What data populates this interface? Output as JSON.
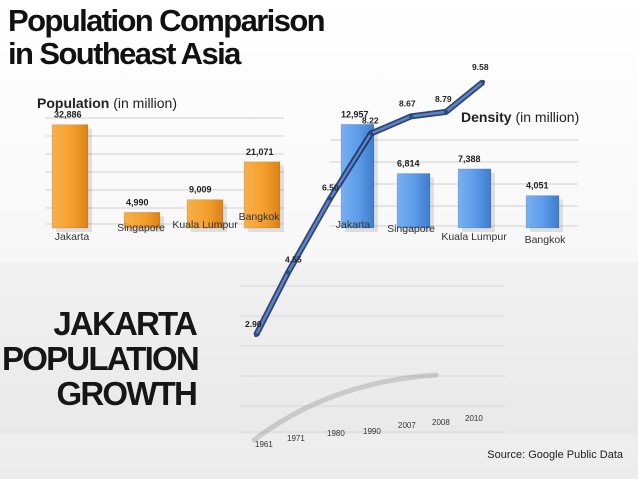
{
  "title": {
    "line1": "Population Comparison",
    "line2": "in Southeast Asia"
  },
  "growth_title": {
    "line1": "JAKARTA",
    "line2": "POPULATION",
    "line3": "GROWTH"
  },
  "source": "Source: Google Public Data",
  "colors": {
    "orange": "#f59f2c",
    "blue": "#5a9ae8",
    "line": "#2b4a82"
  },
  "chart_data": [
    {
      "type": "bar",
      "title": "Population (in million)",
      "title_bold": "Population",
      "title_rest": "(in million)",
      "categories": [
        "Jakarta",
        "Singapore",
        "Kuala Lumpur",
        "Bangkok"
      ],
      "values": [
        32886,
        4990,
        9009,
        21071
      ],
      "value_labels": [
        "32,886",
        "4,990",
        "9,009",
        "21,071"
      ],
      "ylim": [
        0,
        35000
      ]
    },
    {
      "type": "bar",
      "title": "Density (in million)",
      "title_bold": "Density",
      "title_rest": "(in million)",
      "categories": [
        "Jakarta",
        "Singapore",
        "Kuala Lumpur",
        "Bangkok"
      ],
      "values": [
        12957,
        6814,
        7388,
        4051
      ],
      "value_labels": [
        "12,957",
        "6,814",
        "7,388",
        "4,051"
      ],
      "ylim": [
        0,
        13500
      ]
    },
    {
      "type": "line",
      "title": "JAKARTA POPULATION GROWTH",
      "x": [
        "1961",
        "1971",
        "1980",
        "1990",
        "2007",
        "2008",
        "2010"
      ],
      "values": [
        2.9,
        4.55,
        6.5,
        8.22,
        8.67,
        8.79,
        9.58
      ],
      "value_labels": [
        "2.90",
        "4.55",
        "6.50",
        "8.22",
        "8.67",
        "8.79",
        "9.58"
      ],
      "ylim": [
        0,
        10
      ]
    }
  ]
}
